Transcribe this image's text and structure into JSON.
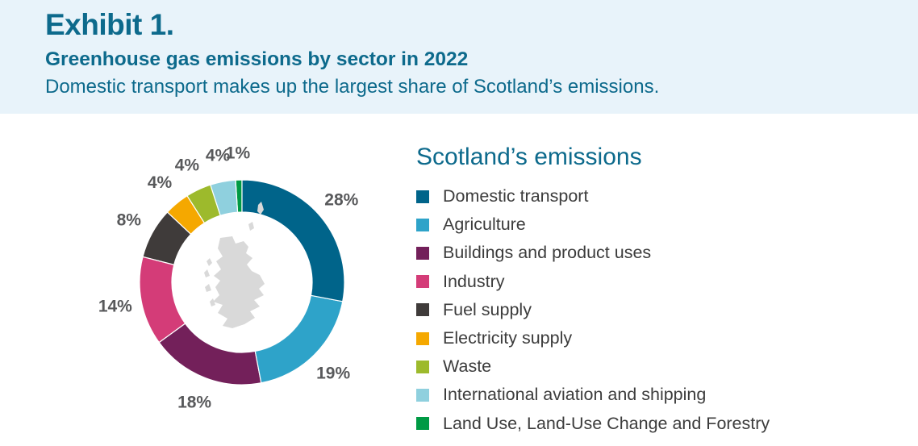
{
  "header": {
    "exhibit": "Exhibit 1.",
    "title": "Greenhouse gas emissions by sector in 2022",
    "subtitle": "Domestic transport makes up the largest share of Scotland’s emissions."
  },
  "chart_data": {
    "type": "pie",
    "variant": "donut",
    "title": "Greenhouse gas emissions by sector in 2022",
    "subtitle": "Domestic transport makes up the largest share of Scotland’s emissions.",
    "legend_title": "Scotland’s emissions",
    "legend_position": "right",
    "center_graphic": "map of Scotland",
    "categories": [
      "Domestic transport",
      "Agriculture",
      "Buildings and product uses",
      "Industry",
      "Fuel supply",
      "Electricity supply",
      "Waste",
      "International aviation and shipping",
      "Land Use, Land-Use Change and Forestry"
    ],
    "values": [
      28,
      19,
      18,
      14,
      8,
      4,
      4,
      4,
      1
    ],
    "labels": [
      "28%",
      "19%",
      "18%",
      "14%",
      "8%",
      "4%",
      "4%",
      "4%",
      "1%"
    ],
    "colors": [
      "#00648a",
      "#2ea3c9",
      "#73205a",
      "#d43c78",
      "#3f3b3a",
      "#f5a800",
      "#9dba2c",
      "#8fd0de",
      "#009a44"
    ]
  }
}
